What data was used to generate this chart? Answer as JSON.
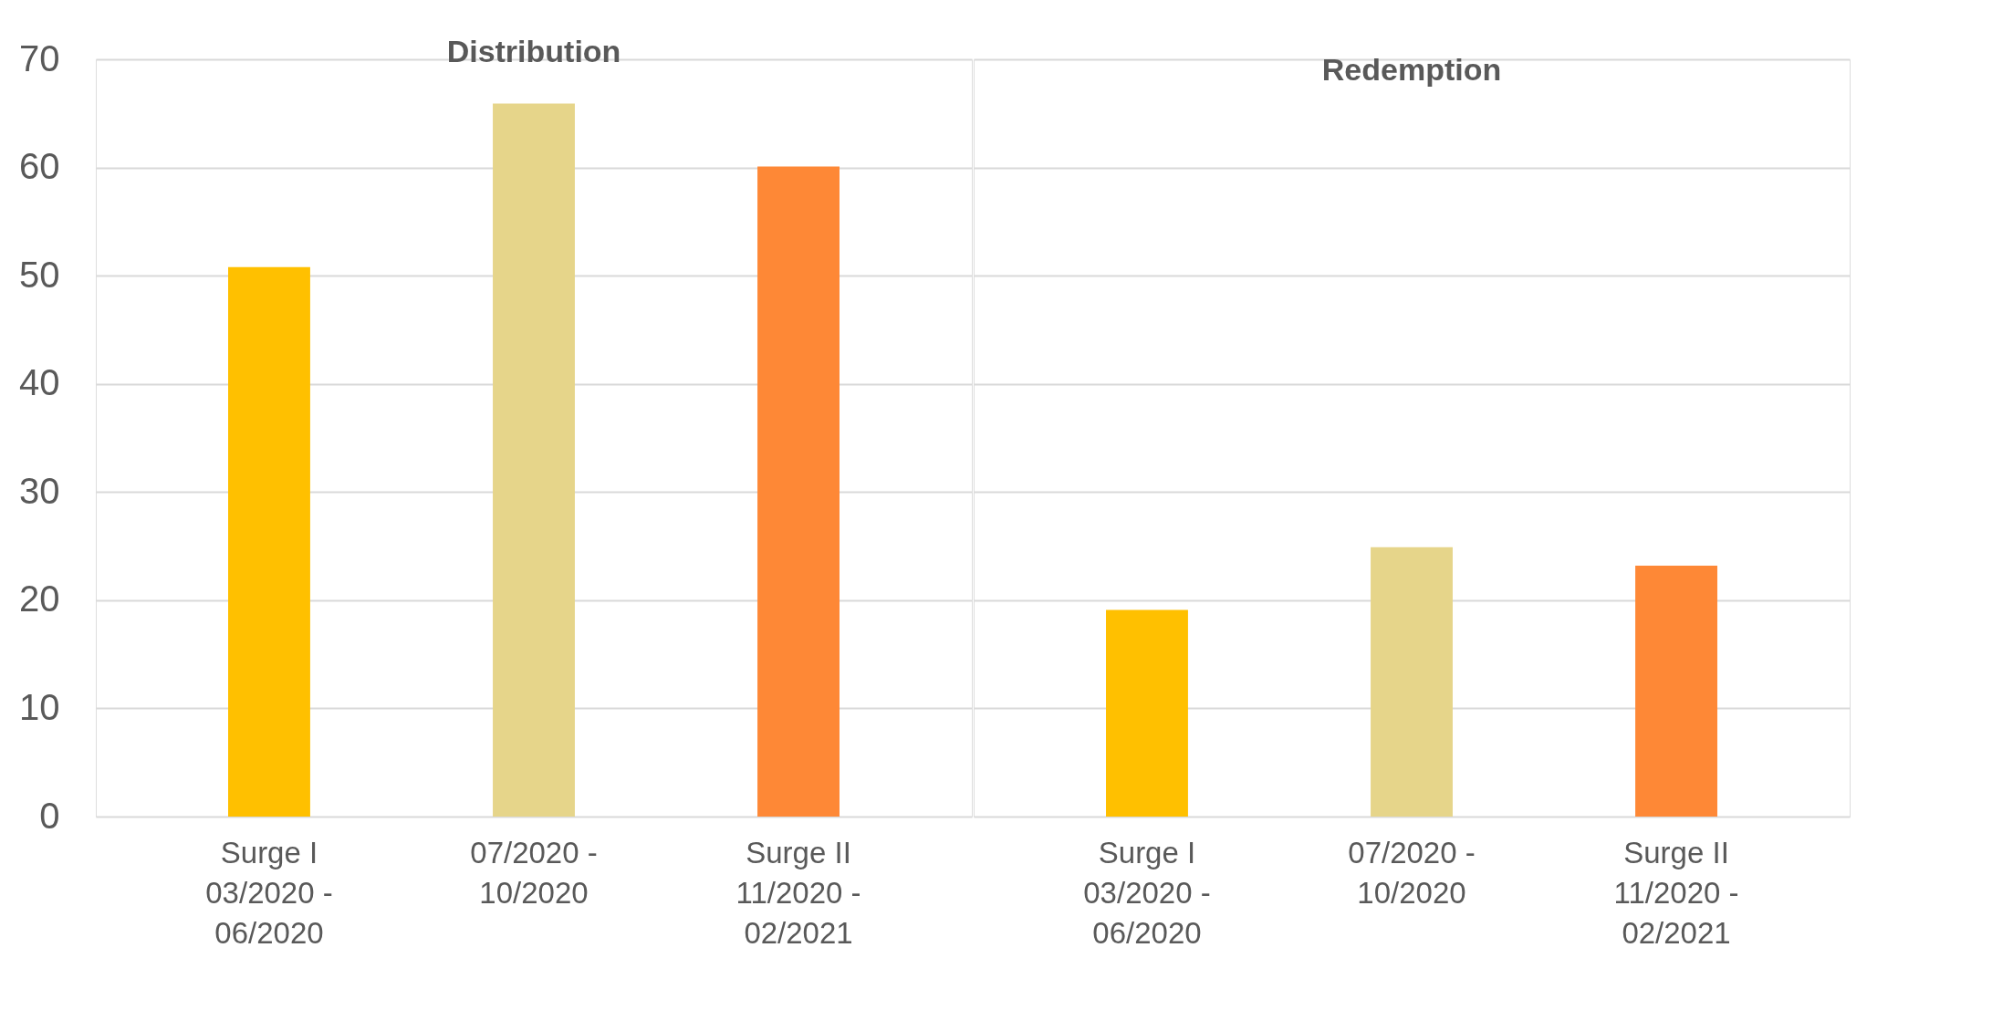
{
  "chart_data": [
    {
      "type": "bar",
      "title": "Distribution",
      "categories": [
        "Surge I 03/2020 - 06/2020",
        "07/2020 - 10/2020",
        "Surge II 11/2020 - 02/2021"
      ],
      "values": [
        50.8,
        65.9,
        60.1
      ],
      "colors": [
        "#ffc000",
        "#e6d58a",
        "#fe8836"
      ],
      "ylim": [
        0,
        70
      ],
      "yticks": [
        0,
        10,
        20,
        30,
        40,
        50,
        60,
        70
      ],
      "grid": "y",
      "legend": false
    },
    {
      "type": "bar",
      "title": "Redemption",
      "categories": [
        "Surge I 03/2020 - 06/2020",
        "07/2020 - 10/2020",
        "Surge II 11/2020 - 02/2021"
      ],
      "values": [
        19.1,
        24.9,
        23.2
      ],
      "colors": [
        "#ffc000",
        "#e6d58a",
        "#fe8836"
      ],
      "ylim": [
        0,
        70
      ],
      "yticks": [
        0,
        10,
        20,
        30,
        40,
        50,
        60,
        70
      ],
      "grid": "y",
      "legend": false,
      "tick_labels": "x"
    }
  ]
}
